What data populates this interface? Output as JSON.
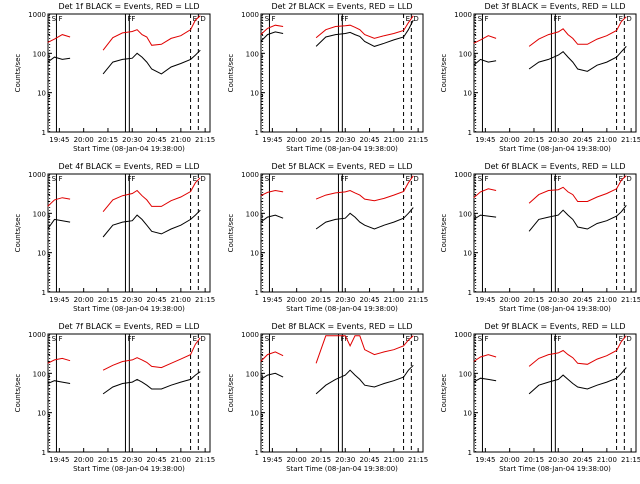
{
  "colors": {
    "events": "#000000",
    "lld": "#e00000",
    "axes": "#000000",
    "background": "#ffffff"
  },
  "shared": {
    "xlabel": "Start Time (08-Jan-04 19:38:00)",
    "ylabel": "Counts/sec",
    "y_tick_labels": [
      "1",
      "10",
      "100",
      "1000"
    ],
    "x_tick_labels": [
      "19:45",
      "20:00",
      "20:15",
      "20:30",
      "20:45",
      "21:00",
      "21:15"
    ]
  },
  "chart_data": [
    {
      "type": "line",
      "panel": "1f",
      "title": "Det 1f BLACK = Events, RED = LLD",
      "ylabel": "Counts/sec",
      "xlabel": "Start Time (08-Jan-04 19:38:00)",
      "xlim": [
        19.633,
        21.3
      ],
      "ylim": [
        1,
        1000
      ],
      "yscale": "log",
      "markers": {
        "S": 19.65,
        "E": 21.1,
        "F": [
          19.72,
          20.43,
          20.47
        ],
        "D": 21.18
      },
      "gaps": [
        [
          19.9,
          20.2
        ]
      ],
      "series": [
        {
          "name": "BLACK = Events",
          "x": [
            19.63,
            19.7,
            19.78,
            19.86,
            20.2,
            20.3,
            20.4,
            20.5,
            20.55,
            20.6,
            20.65,
            20.7,
            20.8,
            20.9,
            21.0,
            21.1,
            21.15,
            21.2
          ],
          "y": [
            60,
            80,
            70,
            75,
            30,
            60,
            70,
            75,
            100,
            80,
            60,
            40,
            30,
            45,
            55,
            70,
            90,
            120
          ]
        },
        {
          "name": "RED = LLD",
          "x": [
            19.63,
            19.7,
            19.78,
            19.86,
            20.2,
            20.3,
            20.4,
            20.5,
            20.55,
            20.6,
            20.65,
            20.7,
            20.8,
            20.9,
            21.0,
            21.1,
            21.15,
            21.2
          ],
          "y": [
            190,
            230,
            300,
            260,
            120,
            250,
            330,
            360,
            400,
            300,
            260,
            160,
            170,
            240,
            280,
            400,
            700,
            900
          ]
        }
      ]
    },
    {
      "type": "line",
      "panel": "2f",
      "title": "Det 2f BLACK = Events, RED = LLD",
      "ylabel": "Counts/sec",
      "xlabel": "Start Time (08-Jan-04 19:38:00)",
      "xlim": [
        19.633,
        21.3
      ],
      "ylim": [
        1,
        1000
      ],
      "yscale": "log",
      "markers": {
        "S": 19.65,
        "E": 21.1,
        "F": [
          19.72,
          20.43,
          20.47
        ],
        "D": 21.18
      },
      "gaps": [
        [
          19.9,
          20.2
        ]
      ],
      "series": [
        {
          "name": "BLACK = Events",
          "x": [
            19.63,
            19.7,
            19.78,
            19.86,
            20.2,
            20.3,
            20.4,
            20.5,
            20.55,
            20.6,
            20.65,
            20.7,
            20.8,
            20.9,
            21.0,
            21.1,
            21.15,
            21.2
          ],
          "y": [
            200,
            300,
            350,
            320,
            150,
            260,
            300,
            320,
            340,
            300,
            270,
            200,
            150,
            180,
            220,
            260,
            400,
            700
          ]
        },
        {
          "name": "RED = LLD",
          "x": [
            19.63,
            19.7,
            19.78,
            19.86,
            20.2,
            20.3,
            20.4,
            20.5,
            20.55,
            20.6,
            20.65,
            20.7,
            20.8,
            20.9,
            21.0,
            21.1,
            21.15,
            21.2
          ],
          "y": [
            300,
            430,
            520,
            480,
            250,
            400,
            480,
            500,
            520,
            460,
            400,
            300,
            240,
            280,
            320,
            380,
            600,
            900
          ]
        }
      ]
    },
    {
      "type": "line",
      "panel": "3f",
      "title": "Det 3f BLACK = Events, RED = LLD",
      "ylabel": "Counts/sec",
      "xlabel": "Start Time (08-Jan-04 19:38:00)",
      "xlim": [
        19.633,
        21.3
      ],
      "ylim": [
        1,
        1000
      ],
      "yscale": "log",
      "markers": {
        "S": 19.65,
        "E": 21.1,
        "F": [
          19.72,
          20.43,
          20.47
        ],
        "D": 21.18
      },
      "gaps": [
        [
          19.9,
          20.2
        ]
      ],
      "series": [
        {
          "name": "BLACK = Events",
          "x": [
            19.63,
            19.7,
            19.78,
            19.86,
            20.2,
            20.3,
            20.4,
            20.5,
            20.55,
            20.6,
            20.65,
            20.7,
            20.8,
            20.9,
            21.0,
            21.1,
            21.15,
            21.2
          ],
          "y": [
            50,
            70,
            60,
            65,
            40,
            60,
            70,
            90,
            110,
            80,
            60,
            40,
            35,
            50,
            60,
            80,
            110,
            150
          ]
        },
        {
          "name": "RED = LLD",
          "x": [
            19.63,
            19.7,
            19.78,
            19.86,
            20.2,
            20.3,
            20.4,
            20.5,
            20.55,
            20.6,
            20.65,
            20.7,
            20.8,
            20.9,
            21.0,
            21.1,
            21.15,
            21.2
          ],
          "y": [
            180,
            220,
            280,
            240,
            150,
            230,
            300,
            350,
            420,
            300,
            240,
            170,
            170,
            230,
            280,
            380,
            650,
            850
          ]
        }
      ]
    },
    {
      "type": "line",
      "panel": "4f",
      "title": "Det 4f BLACK = Events, RED = LLD",
      "ylabel": "Counts/sec",
      "xlabel": "Start Time (08-Jan-04 19:38:00)",
      "xlim": [
        19.633,
        21.3
      ],
      "ylim": [
        1,
        1000
      ],
      "yscale": "log",
      "markers": {
        "S": 19.65,
        "E": 21.1,
        "F": [
          19.72,
          20.43,
          20.47
        ],
        "D": 21.18
      },
      "gaps": [
        [
          19.9,
          20.2
        ]
      ],
      "series": [
        {
          "name": "BLACK = Events",
          "x": [
            19.63,
            19.7,
            19.78,
            19.86,
            20.2,
            20.3,
            20.4,
            20.5,
            20.55,
            20.6,
            20.65,
            20.7,
            20.8,
            20.9,
            21.0,
            21.1,
            21.15,
            21.2
          ],
          "y": [
            40,
            70,
            65,
            60,
            25,
            50,
            60,
            65,
            90,
            70,
            50,
            35,
            30,
            40,
            50,
            70,
            90,
            120
          ]
        },
        {
          "name": "RED = LLD",
          "x": [
            19.63,
            19.7,
            19.78,
            19.86,
            20.2,
            20.3,
            20.4,
            20.5,
            20.55,
            20.6,
            20.65,
            20.7,
            20.8,
            20.9,
            21.0,
            21.1,
            21.15,
            21.2
          ],
          "y": [
            150,
            220,
            250,
            230,
            110,
            220,
            280,
            320,
            380,
            280,
            220,
            150,
            150,
            210,
            260,
            360,
            600,
            800
          ]
        }
      ]
    },
    {
      "type": "line",
      "panel": "5f",
      "title": "Det 5f BLACK = Events, RED = LLD",
      "ylabel": "Counts/sec",
      "xlabel": "Start Time (08-Jan-04 19:38:00)",
      "xlim": [
        19.633,
        21.3
      ],
      "ylim": [
        1,
        1000
      ],
      "yscale": "log",
      "markers": {
        "S": 19.65,
        "E": 21.1,
        "F": [
          19.72,
          20.43,
          20.47
        ],
        "D": 21.18
      },
      "gaps": [
        [
          19.9,
          20.2
        ]
      ],
      "series": [
        {
          "name": "BLACK = Events",
          "x": [
            19.63,
            19.7,
            19.78,
            19.86,
            20.2,
            20.3,
            20.4,
            20.5,
            20.55,
            20.6,
            20.65,
            20.7,
            20.8,
            20.9,
            21.0,
            21.1,
            21.15,
            21.2
          ],
          "y": [
            60,
            80,
            90,
            75,
            40,
            60,
            70,
            75,
            100,
            80,
            60,
            50,
            40,
            50,
            60,
            75,
            100,
            140
          ]
        },
        {
          "name": "RED = LLD",
          "x": [
            19.63,
            19.7,
            19.78,
            19.86,
            20.2,
            20.3,
            20.4,
            20.5,
            20.55,
            20.6,
            20.65,
            20.7,
            20.8,
            20.9,
            21.0,
            21.1,
            21.15,
            21.2
          ],
          "y": [
            280,
            340,
            380,
            350,
            230,
            290,
            330,
            350,
            380,
            330,
            290,
            230,
            210,
            240,
            290,
            360,
            600,
            900
          ]
        }
      ]
    },
    {
      "type": "line",
      "panel": "6f",
      "title": "Det 6f BLACK = Events, RED = LLD",
      "ylabel": "Counts/sec",
      "xlabel": "Start Time (08-Jan-04 19:38:00)",
      "xlim": [
        19.633,
        21.3
      ],
      "ylim": [
        1,
        1000
      ],
      "yscale": "log",
      "markers": {
        "S": 19.65,
        "E": 21.1,
        "F": [
          19.72,
          20.43,
          20.47
        ],
        "D": 21.18
      },
      "gaps": [
        [
          19.9,
          20.2
        ]
      ],
      "series": [
        {
          "name": "BLACK = Events",
          "x": [
            19.63,
            19.7,
            19.78,
            19.86,
            20.2,
            20.3,
            20.4,
            20.5,
            20.55,
            20.6,
            20.65,
            20.7,
            20.8,
            20.9,
            21.0,
            21.1,
            21.15,
            21.2
          ],
          "y": [
            70,
            90,
            85,
            80,
            35,
            70,
            80,
            90,
            120,
            90,
            70,
            45,
            40,
            55,
            65,
            85,
            110,
            160
          ]
        },
        {
          "name": "RED = LLD",
          "x": [
            19.63,
            19.7,
            19.78,
            19.86,
            20.2,
            20.3,
            20.4,
            20.5,
            20.55,
            20.6,
            20.65,
            20.7,
            20.8,
            20.9,
            21.0,
            21.1,
            21.15,
            21.2
          ],
          "y": [
            250,
            350,
            420,
            380,
            180,
            300,
            380,
            400,
            460,
            350,
            300,
            200,
            200,
            260,
            320,
            420,
            700,
            900
          ]
        }
      ]
    },
    {
      "type": "line",
      "panel": "7f",
      "title": "Det 7f BLACK = Events, RED = LLD",
      "ylabel": "Counts/sec",
      "xlabel": "Start Time (08-Jan-04 19:38:00)",
      "xlim": [
        19.633,
        21.3
      ],
      "ylim": [
        1,
        1000
      ],
      "yscale": "log",
      "markers": {
        "S": 19.65,
        "E": 21.1,
        "F": [
          19.72,
          20.43,
          20.47
        ],
        "D": 21.18
      },
      "gaps": [
        [
          19.9,
          20.2
        ]
      ],
      "series": [
        {
          "name": "BLACK = Events",
          "x": [
            19.63,
            19.7,
            19.78,
            19.86,
            20.2,
            20.3,
            20.4,
            20.5,
            20.55,
            20.6,
            20.65,
            20.7,
            20.8,
            20.9,
            21.0,
            21.1,
            21.15,
            21.2
          ],
          "y": [
            55,
            65,
            60,
            55,
            30,
            45,
            55,
            60,
            70,
            60,
            50,
            40,
            40,
            50,
            60,
            70,
            90,
            110
          ]
        },
        {
          "name": "RED = LLD",
          "x": [
            19.63,
            19.7,
            19.78,
            19.86,
            20.2,
            20.3,
            20.4,
            20.5,
            20.55,
            20.6,
            20.65,
            20.7,
            20.8,
            20.9,
            21.0,
            21.1,
            21.15,
            21.2
          ],
          "y": [
            180,
            220,
            240,
            210,
            120,
            160,
            200,
            220,
            250,
            220,
            190,
            150,
            140,
            180,
            230,
            300,
            550,
            800
          ]
        }
      ]
    },
    {
      "type": "line",
      "panel": "8f",
      "title": "Det 8f BLACK = Events, RED = LLD",
      "ylabel": "Counts/sec",
      "xlabel": "Start Time (08-Jan-04 19:38:00)",
      "xlim": [
        19.633,
        21.3
      ],
      "ylim": [
        1,
        1000
      ],
      "yscale": "log",
      "markers": {
        "S": 19.65,
        "E": 21.1,
        "F": [
          19.72,
          20.43,
          20.47
        ],
        "D": 21.18
      },
      "gaps": [
        [
          19.9,
          20.2
        ]
      ],
      "series": [
        {
          "name": "BLACK = Events",
          "x": [
            19.63,
            19.7,
            19.78,
            19.86,
            20.2,
            20.3,
            20.4,
            20.5,
            20.55,
            20.6,
            20.65,
            20.7,
            20.8,
            20.9,
            21.0,
            21.1,
            21.15,
            21.2
          ],
          "y": [
            70,
            90,
            100,
            80,
            30,
            50,
            70,
            90,
            120,
            90,
            70,
            50,
            45,
            55,
            65,
            80,
            120,
            160
          ]
        },
        {
          "name": "RED = LLD",
          "x": [
            19.63,
            19.7,
            19.78,
            19.86,
            20.2,
            20.3,
            20.4,
            20.5,
            20.55,
            20.6,
            20.65,
            20.7,
            20.8,
            20.9,
            21.0,
            21.1,
            21.15,
            21.2
          ],
          "y": [
            200,
            300,
            350,
            280,
            180,
            900,
            900,
            900,
            500,
            900,
            900,
            400,
            300,
            350,
            400,
            500,
            700,
            900
          ]
        }
      ]
    },
    {
      "type": "line",
      "panel": "9f",
      "title": "Det 9f BLACK = Events, RED = LLD",
      "ylabel": "Counts/sec",
      "xlabel": "Start Time (08-Jan-04 19:38:00)",
      "xlim": [
        19.633,
        21.3
      ],
      "ylim": [
        1,
        1000
      ],
      "yscale": "log",
      "markers": {
        "S": 19.65,
        "E": 21.1,
        "F": [
          19.72,
          20.43,
          20.47
        ],
        "D": 21.18
      },
      "gaps": [
        [
          19.9,
          20.2
        ]
      ],
      "series": [
        {
          "name": "BLACK = Events",
          "x": [
            19.63,
            19.7,
            19.78,
            19.86,
            20.2,
            20.3,
            20.4,
            20.5,
            20.55,
            20.6,
            20.65,
            20.7,
            20.8,
            20.9,
            21.0,
            21.1,
            21.15,
            21.2
          ],
          "y": [
            60,
            75,
            70,
            65,
            30,
            50,
            60,
            70,
            90,
            70,
            55,
            45,
            40,
            50,
            60,
            75,
            100,
            140
          ]
        },
        {
          "name": "RED = LLD",
          "x": [
            19.63,
            19.7,
            19.78,
            19.86,
            20.2,
            20.3,
            20.4,
            20.5,
            20.55,
            20.6,
            20.65,
            20.7,
            20.8,
            20.9,
            21.0,
            21.1,
            21.15,
            21.2
          ],
          "y": [
            200,
            260,
            300,
            260,
            150,
            240,
            300,
            330,
            380,
            300,
            250,
            180,
            170,
            230,
            280,
            380,
            650,
            900
          ]
        }
      ]
    }
  ]
}
